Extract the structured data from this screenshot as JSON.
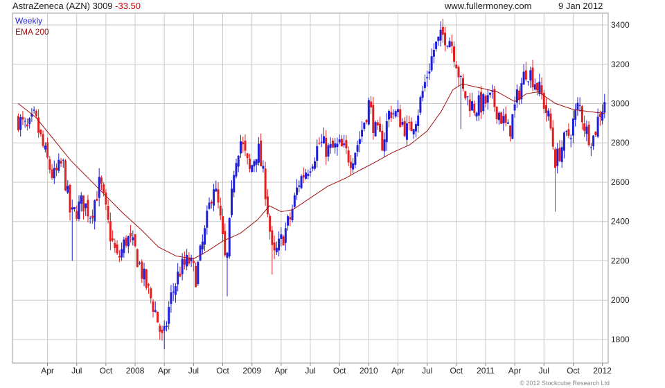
{
  "header": {
    "symbol": "AstraZeneca (AZN)",
    "last": "3009",
    "change": "-33.50",
    "site": "www.fullermoney.com",
    "date": "9 Jan 2012"
  },
  "footer": {
    "copyright": "© 2012 Stockcube Research Ltd"
  },
  "colors": {
    "up": "#1f1fd6",
    "down": "#e02020",
    "ema": "#a01010",
    "grid": "#c8c8c8",
    "legend_weekly": "#1f1fd6",
    "legend_ema": "#a01010"
  },
  "chart_data": {
    "type": "candlestick",
    "interval": "weekly",
    "legend": [
      "Weekly",
      "EMA 200"
    ],
    "ylim": [
      1680,
      3460
    ],
    "y_ticks": [
      1800,
      2000,
      2200,
      2400,
      2600,
      2800,
      3000,
      3200,
      3400
    ],
    "y_axis_position": "right",
    "grid": true,
    "x_ticks": [
      {
        "label": "Apr",
        "t": 2007.25
      },
      {
        "label": "Jul",
        "t": 2007.5
      },
      {
        "label": "Oct",
        "t": 2007.75
      },
      {
        "label": "2008",
        "t": 2008.0
      },
      {
        "label": "Apr",
        "t": 2008.25
      },
      {
        "label": "Jul",
        "t": 2008.5
      },
      {
        "label": "Oct",
        "t": 2008.75
      },
      {
        "label": "2009",
        "t": 2009.0
      },
      {
        "label": "Apr",
        "t": 2009.25
      },
      {
        "label": "Jul",
        "t": 2009.5
      },
      {
        "label": "Oct",
        "t": 2009.75
      },
      {
        "label": "2010",
        "t": 2010.0
      },
      {
        "label": "Apr",
        "t": 2010.25
      },
      {
        "label": "Jul",
        "t": 2010.5
      },
      {
        "label": "Oct",
        "t": 2010.75
      },
      {
        "label": "2011",
        "t": 2011.0
      },
      {
        "label": "Apr",
        "t": 2011.25
      },
      {
        "label": "Jul",
        "t": 2011.5
      },
      {
        "label": "Oct",
        "t": 2011.75
      },
      {
        "label": "2012",
        "t": 2012.0
      }
    ],
    "xlim": [
      2006.95,
      2012.05
    ],
    "price_path": [
      {
        "t": 2007.0,
        "v": 2920
      },
      {
        "t": 2007.08,
        "v": 2860
      },
      {
        "t": 2007.14,
        "v": 2930
      },
      {
        "t": 2007.22,
        "v": 2760
      },
      {
        "t": 2007.3,
        "v": 2620
      },
      {
        "t": 2007.38,
        "v": 2700
      },
      {
        "t": 2007.45,
        "v": 2420
      },
      {
        "t": 2007.55,
        "v": 2500
      },
      {
        "t": 2007.62,
        "v": 2440
      },
      {
        "t": 2007.7,
        "v": 2600
      },
      {
        "t": 2007.78,
        "v": 2350
      },
      {
        "t": 2007.85,
        "v": 2200
      },
      {
        "t": 2007.93,
        "v": 2320
      },
      {
        "t": 2008.0,
        "v": 2250
      },
      {
        "t": 2008.08,
        "v": 2100
      },
      {
        "t": 2008.17,
        "v": 1950
      },
      {
        "t": 2008.24,
        "v": 1780
      },
      {
        "t": 2008.3,
        "v": 2000
      },
      {
        "t": 2008.38,
        "v": 2150
      },
      {
        "t": 2008.46,
        "v": 2200
      },
      {
        "t": 2008.52,
        "v": 2120
      },
      {
        "t": 2008.6,
        "v": 2350
      },
      {
        "t": 2008.67,
        "v": 2600
      },
      {
        "t": 2008.72,
        "v": 2450
      },
      {
        "t": 2008.78,
        "v": 2150
      },
      {
        "t": 2008.85,
        "v": 2700
      },
      {
        "t": 2008.9,
        "v": 2820
      },
      {
        "t": 2008.98,
        "v": 2650
      },
      {
        "t": 2009.05,
        "v": 2780
      },
      {
        "t": 2009.12,
        "v": 2550
      },
      {
        "t": 2009.18,
        "v": 2200
      },
      {
        "t": 2009.25,
        "v": 2300
      },
      {
        "t": 2009.33,
        "v": 2420
      },
      {
        "t": 2009.4,
        "v": 2600
      },
      {
        "t": 2009.5,
        "v": 2700
      },
      {
        "t": 2009.58,
        "v": 2800
      },
      {
        "t": 2009.66,
        "v": 2760
      },
      {
        "t": 2009.75,
        "v": 2780
      },
      {
        "t": 2009.85,
        "v": 2720
      },
      {
        "t": 2009.92,
        "v": 2820
      },
      {
        "t": 2010.0,
        "v": 3000
      },
      {
        "t": 2010.06,
        "v": 2850
      },
      {
        "t": 2010.12,
        "v": 2800
      },
      {
        "t": 2010.18,
        "v": 2970
      },
      {
        "t": 2010.26,
        "v": 2930
      },
      {
        "t": 2010.34,
        "v": 2850
      },
      {
        "t": 2010.42,
        "v": 2960
      },
      {
        "t": 2010.5,
        "v": 3150
      },
      {
        "t": 2010.56,
        "v": 3280
      },
      {
        "t": 2010.64,
        "v": 3350
      },
      {
        "t": 2010.7,
        "v": 3330
      },
      {
        "t": 2010.75,
        "v": 3220
      },
      {
        "t": 2010.8,
        "v": 3060
      },
      {
        "t": 2010.9,
        "v": 2980
      },
      {
        "t": 2010.98,
        "v": 3000
      },
      {
        "t": 2011.05,
        "v": 3020
      },
      {
        "t": 2011.12,
        "v": 2950
      },
      {
        "t": 2011.2,
        "v": 2850
      },
      {
        "t": 2011.28,
        "v": 3050
      },
      {
        "t": 2011.35,
        "v": 3180
      },
      {
        "t": 2011.42,
        "v": 3120
      },
      {
        "t": 2011.48,
        "v": 3040
      },
      {
        "t": 2011.55,
        "v": 2900
      },
      {
        "t": 2011.6,
        "v": 2700
      },
      {
        "t": 2011.65,
        "v": 2780
      },
      {
        "t": 2011.72,
        "v": 2850
      },
      {
        "t": 2011.8,
        "v": 3000
      },
      {
        "t": 2011.86,
        "v": 2860
      },
      {
        "t": 2011.92,
        "v": 2820
      },
      {
        "t": 2011.98,
        "v": 2960
      },
      {
        "t": 2012.02,
        "v": 3009
      }
    ],
    "extreme_wicks": [
      {
        "t": 2007.47,
        "low": 2200
      },
      {
        "t": 2008.25,
        "low": 1750
      },
      {
        "t": 2008.78,
        "low": 2020
      },
      {
        "t": 2009.18,
        "low": 2130
      },
      {
        "t": 2010.78,
        "low": 2870
      },
      {
        "t": 2011.6,
        "low": 2450
      },
      {
        "t": 2010.66,
        "high": 3390
      }
    ],
    "ema_path": [
      {
        "t": 2007.0,
        "v": 3000
      },
      {
        "t": 2007.15,
        "v": 2930
      },
      {
        "t": 2007.3,
        "v": 2820
      },
      {
        "t": 2007.45,
        "v": 2710
      },
      {
        "t": 2007.6,
        "v": 2620
      },
      {
        "t": 2007.75,
        "v": 2530
      },
      {
        "t": 2007.9,
        "v": 2440
      },
      {
        "t": 2008.05,
        "v": 2360
      },
      {
        "t": 2008.2,
        "v": 2270
      },
      {
        "t": 2008.35,
        "v": 2225
      },
      {
        "t": 2008.5,
        "v": 2210
      },
      {
        "t": 2008.62,
        "v": 2250
      },
      {
        "t": 2008.75,
        "v": 2300
      },
      {
        "t": 2008.9,
        "v": 2340
      },
      {
        "t": 2009.05,
        "v": 2410
      },
      {
        "t": 2009.15,
        "v": 2480
      },
      {
        "t": 2009.25,
        "v": 2450
      },
      {
        "t": 2009.35,
        "v": 2460
      },
      {
        "t": 2009.5,
        "v": 2520
      },
      {
        "t": 2009.65,
        "v": 2580
      },
      {
        "t": 2009.8,
        "v": 2620
      },
      {
        "t": 2009.92,
        "v": 2660
      },
      {
        "t": 2010.05,
        "v": 2700
      },
      {
        "t": 2010.2,
        "v": 2750
      },
      {
        "t": 2010.35,
        "v": 2790
      },
      {
        "t": 2010.5,
        "v": 2860
      },
      {
        "t": 2010.62,
        "v": 2960
      },
      {
        "t": 2010.72,
        "v": 3070
      },
      {
        "t": 2010.8,
        "v": 3100
      },
      {
        "t": 2010.95,
        "v": 3080
      },
      {
        "t": 2011.1,
        "v": 3060
      },
      {
        "t": 2011.25,
        "v": 3010
      },
      {
        "t": 2011.35,
        "v": 3050
      },
      {
        "t": 2011.45,
        "v": 3060
      },
      {
        "t": 2011.6,
        "v": 3000
      },
      {
        "t": 2011.75,
        "v": 2970
      },
      {
        "t": 2011.88,
        "v": 2960
      },
      {
        "t": 2012.02,
        "v": 2950
      }
    ]
  }
}
